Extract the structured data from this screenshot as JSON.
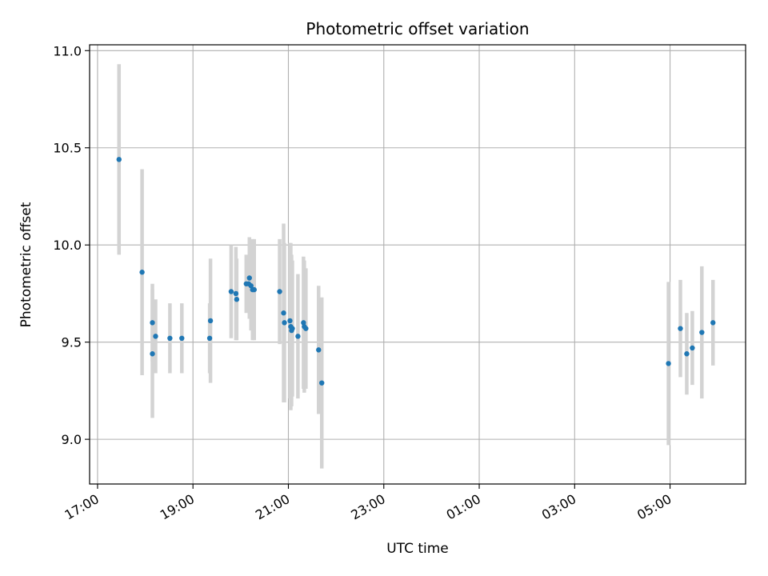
{
  "chart_data": {
    "type": "scatter",
    "title": "Photometric offset variation",
    "xlabel": "UTC time",
    "ylabel": "Photometric offset",
    "xlim": [
      "16:50",
      "06:35"
    ],
    "ylim": [
      8.77,
      11.03
    ],
    "x_ticks": [
      "17:00",
      "19:00",
      "21:00",
      "23:00",
      "01:00",
      "03:00",
      "05:00"
    ],
    "y_ticks": [
      "9.0",
      "9.5",
      "10.0",
      "10.5",
      "11.0"
    ],
    "grid": true,
    "colors": {
      "marker": "#1f77b4",
      "errorbar": "#d3d3d3",
      "grid": "#b0b0b0"
    },
    "series": [
      {
        "points": [
          {
            "x": "17:27",
            "y": 10.44,
            "err": 0.49
          },
          {
            "x": "17:56",
            "y": 9.86,
            "err": 0.53
          },
          {
            "x": "18:09",
            "y": 9.6,
            "err": 0.2
          },
          {
            "x": "18:09",
            "y": 9.44,
            "err": 0.33
          },
          {
            "x": "18:13",
            "y": 9.53,
            "err": 0.19
          },
          {
            "x": "18:31",
            "y": 9.52,
            "err": 0.18
          },
          {
            "x": "18:46",
            "y": 9.52,
            "err": 0.18
          },
          {
            "x": "19:21",
            "y": 9.52,
            "err": 0.18
          },
          {
            "x": "19:22",
            "y": 9.61,
            "err": 0.32
          },
          {
            "x": "19:48",
            "y": 9.76,
            "err": 0.24
          },
          {
            "x": "19:54",
            "y": 9.75,
            "err": 0.24
          },
          {
            "x": "19:55",
            "y": 9.72,
            "err": 0.21
          },
          {
            "x": "20:07",
            "y": 9.8,
            "err": 0.15
          },
          {
            "x": "20:10",
            "y": 9.8,
            "err": 0.14
          },
          {
            "x": "20:11",
            "y": 9.83,
            "err": 0.21
          },
          {
            "x": "20:13",
            "y": 9.79,
            "err": 0.23
          },
          {
            "x": "20:15",
            "y": 9.77,
            "err": 0.26
          },
          {
            "x": "20:17",
            "y": 9.77,
            "err": 0.26
          },
          {
            "x": "20:49",
            "y": 9.76,
            "err": 0.27
          },
          {
            "x": "20:54",
            "y": 9.65,
            "err": 0.46
          },
          {
            "x": "20:55",
            "y": 9.6,
            "err": 0.41
          },
          {
            "x": "21:02",
            "y": 9.61,
            "err": 0.4
          },
          {
            "x": "21:03",
            "y": 9.58,
            "err": 0.43
          },
          {
            "x": "21:04",
            "y": 9.56,
            "err": 0.39
          },
          {
            "x": "21:05",
            "y": 9.57,
            "err": 0.35
          },
          {
            "x": "21:12",
            "y": 9.53,
            "err": 0.32
          },
          {
            "x": "21:19",
            "y": 9.6,
            "err": 0.34
          },
          {
            "x": "21:20",
            "y": 9.58,
            "err": 0.34
          },
          {
            "x": "21:22",
            "y": 9.57,
            "err": 0.31
          },
          {
            "x": "21:38",
            "y": 9.46,
            "err": 0.33
          },
          {
            "x": "21:42",
            "y": 9.29,
            "err": 0.44
          },
          {
            "x": "04:58",
            "y": 9.39,
            "err": 0.42
          },
          {
            "x": "05:13",
            "y": 9.57,
            "err": 0.25
          },
          {
            "x": "05:21",
            "y": 9.44,
            "err": 0.21
          },
          {
            "x": "05:28",
            "y": 9.47,
            "err": 0.19
          },
          {
            "x": "05:40",
            "y": 9.55,
            "err": 0.34
          },
          {
            "x": "05:54",
            "y": 9.6,
            "err": 0.22
          }
        ]
      }
    ]
  }
}
